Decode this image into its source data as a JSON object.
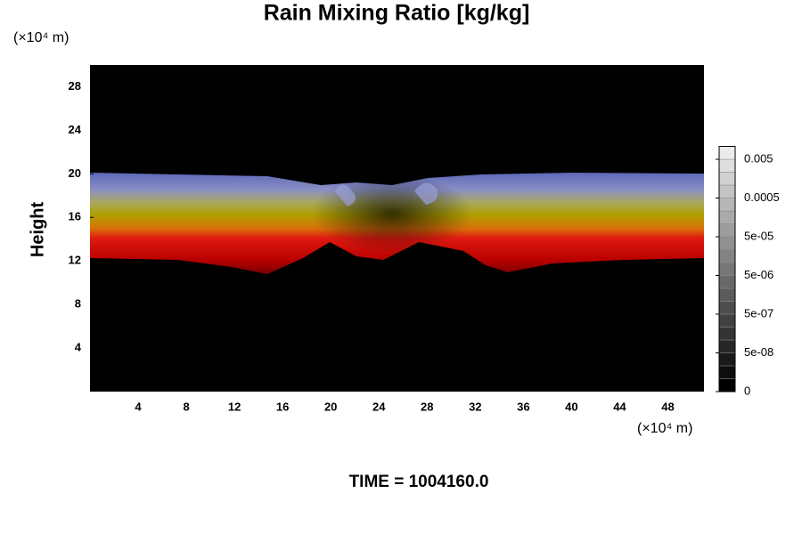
{
  "chart_data": {
    "type": "volume",
    "title": "Rain Mixing Ratio [kg/kg]",
    "y_label": "Height",
    "y_unit": "(×10⁴ m)",
    "x_unit": "(×10⁴ m)",
    "xlim": [
      0,
      51
    ],
    "ylim": [
      0,
      30
    ],
    "xticks": [
      4,
      8,
      12,
      16,
      20,
      24,
      28,
      32,
      36,
      40,
      44,
      48
    ],
    "yticks": [
      4,
      8,
      12,
      16,
      20,
      24,
      28
    ],
    "colorbar_ticks": [
      0,
      {
        "value": 5e-08,
        "label": "5e-08"
      },
      {
        "value": 5e-07,
        "label": "5e-07"
      },
      {
        "value": 5e-06,
        "label": "5e-06"
      },
      {
        "value": 5e-05,
        "label": "5e-05"
      },
      0.0005,
      0.005
    ],
    "time_label": "TIME = 1004160.0"
  }
}
